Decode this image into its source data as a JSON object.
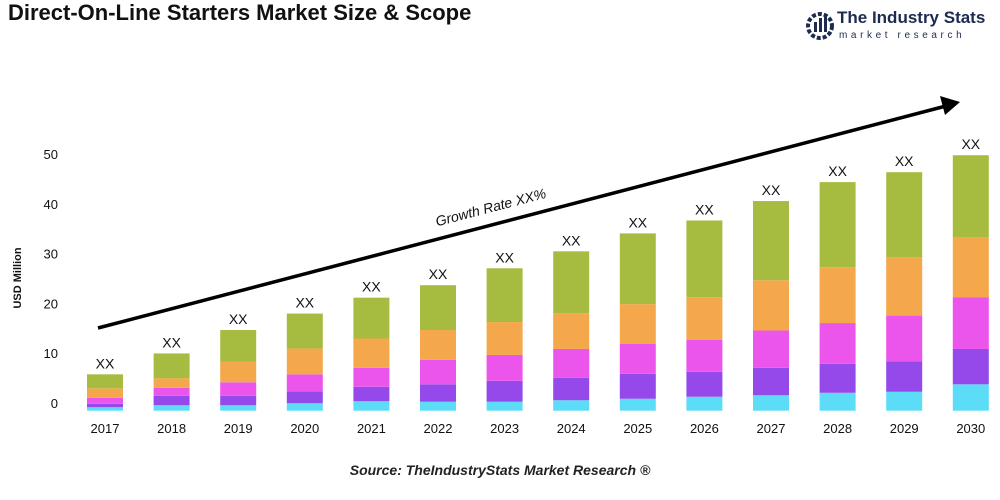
{
  "title": "Direct-On-Line Starters Market Size & Scope",
  "logo": {
    "name": "The Industry Stats",
    "tagline": "market research"
  },
  "source": "Source: TheIndustryStats Market Research ®",
  "chart_data": {
    "type": "bar",
    "stacked": true,
    "title": "Direct-On-Line Starters Market Size & Scope",
    "xlabel": "",
    "ylabel": "USD Million",
    "ylim": [
      0,
      50
    ],
    "yticks": [
      0,
      10,
      20,
      30,
      40,
      50
    ],
    "grid": false,
    "categories": [
      "2017",
      "2018",
      "2019",
      "2020",
      "2021",
      "2022",
      "2023",
      "2024",
      "2025",
      "2026",
      "2027",
      "2028",
      "2029",
      "2030"
    ],
    "bar_labels": [
      "XX",
      "XX",
      "XX",
      "XX",
      "XX",
      "XX",
      "XX",
      "XX",
      "XX",
      "XX",
      "XX",
      "XX",
      "XX",
      "XX"
    ],
    "annotation": "Growth Rate XX%",
    "colors": [
      "#5DDCF8",
      "#9549EA",
      "#EB55EC",
      "#F4A74B",
      "#A6BC40"
    ],
    "series": [
      {
        "values": [
          0.7,
          1.1,
          1.1,
          1.5,
          1.9,
          1.8,
          1.8,
          2.1,
          2.4,
          2.8,
          3.1,
          3.6,
          3.8,
          5.3
        ]
      },
      {
        "values": [
          0.7,
          1.9,
          1.9,
          2.4,
          2.9,
          3.5,
          4.2,
          4.5,
          5.0,
          5.0,
          5.5,
          5.8,
          6.1,
          7.1
        ]
      },
      {
        "values": [
          1.2,
          1.6,
          2.7,
          3.4,
          3.8,
          4.9,
          5.2,
          5.8,
          6.0,
          6.4,
          7.5,
          8.2,
          9.2,
          10.4
        ]
      },
      {
        "values": [
          1.9,
          1.9,
          4.1,
          5.2,
          5.9,
          6.0,
          6.6,
          7.2,
          8.0,
          8.6,
          10.1,
          11.2,
          11.7,
          12.0
        ]
      },
      {
        "values": [
          2.8,
          5.0,
          6.4,
          7.0,
          8.2,
          9.0,
          10.8,
          12.4,
          14.2,
          15.4,
          15.9,
          17.1,
          17.1,
          16.5
        ]
      }
    ]
  }
}
